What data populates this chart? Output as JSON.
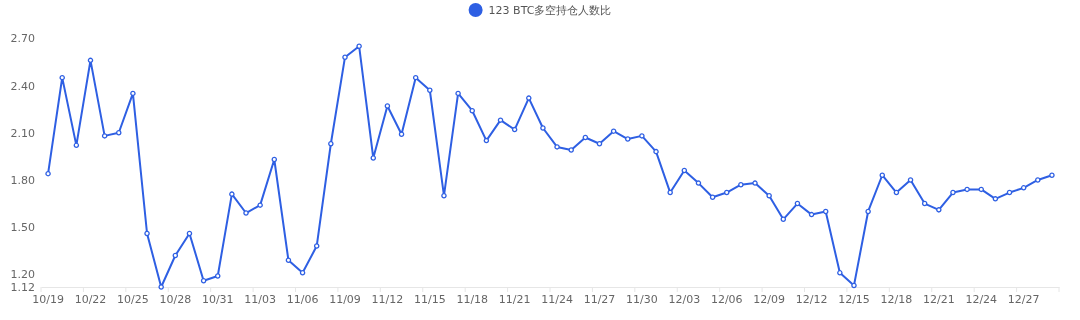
{
  "chart_data": {
    "type": "line",
    "categories": [
      "10/19",
      null,
      null,
      "10/22",
      null,
      null,
      "10/25",
      null,
      null,
      "10/28",
      null,
      null,
      "10/31",
      null,
      null,
      "11/03",
      null,
      null,
      "11/06",
      null,
      null,
      "11/09",
      null,
      null,
      "11/12",
      null,
      null,
      "11/15",
      null,
      null,
      "11/18",
      null,
      null,
      "11/21",
      null,
      null,
      "11/24",
      null,
      null,
      "11/27",
      null,
      null,
      "11/30",
      null,
      null,
      "12/03",
      null,
      null,
      "12/06",
      null,
      null,
      "12/09",
      null,
      null,
      "12/12",
      null,
      null,
      "12/15",
      null,
      null,
      "12/18",
      null,
      null,
      "12/21",
      null,
      null,
      "12/24",
      null,
      null,
      "12/27",
      null,
      null
    ],
    "series": [
      {
        "name": "123 BTC多空持仓人数比",
        "color": "#2e5fe3",
        "values": [
          1.84,
          2.45,
          2.02,
          2.56,
          2.08,
          2.1,
          2.35,
          1.46,
          1.12,
          1.32,
          1.46,
          1.16,
          1.19,
          1.71,
          1.59,
          1.64,
          1.93,
          1.29,
          1.21,
          1.38,
          2.03,
          2.58,
          2.65,
          1.94,
          2.27,
          2.09,
          2.45,
          2.37,
          1.7,
          2.35,
          2.24,
          2.05,
          2.18,
          2.12,
          2.32,
          2.13,
          2.01,
          1.99,
          2.07,
          2.03,
          2.11,
          2.06,
          2.08,
          1.98,
          1.72,
          1.86,
          1.78,
          1.69,
          1.72,
          1.77,
          1.78,
          1.7,
          1.55,
          1.65,
          1.58,
          1.6,
          1.21,
          1.13,
          1.6,
          1.83,
          1.72,
          1.8,
          1.65,
          1.61,
          1.72,
          1.74,
          1.74,
          1.68,
          1.72,
          1.75,
          1.8,
          1.83
        ]
      }
    ],
    "ylim": [
      1.12,
      2.7
    ],
    "yticks": [
      1.12,
      {
        "value": 1.2,
        "label": "1.20"
      },
      {
        "value": 1.5,
        "label": "1.50"
      },
      {
        "value": 1.8,
        "label": "1.80"
      },
      {
        "value": 2.1,
        "label": "2.10"
      },
      {
        "value": 2.4,
        "label": "2.40"
      },
      {
        "value": 2.7,
        "label": "2.70"
      }
    ],
    "marker": "circle",
    "line_style": "solid",
    "legend": "top",
    "grid": false
  }
}
